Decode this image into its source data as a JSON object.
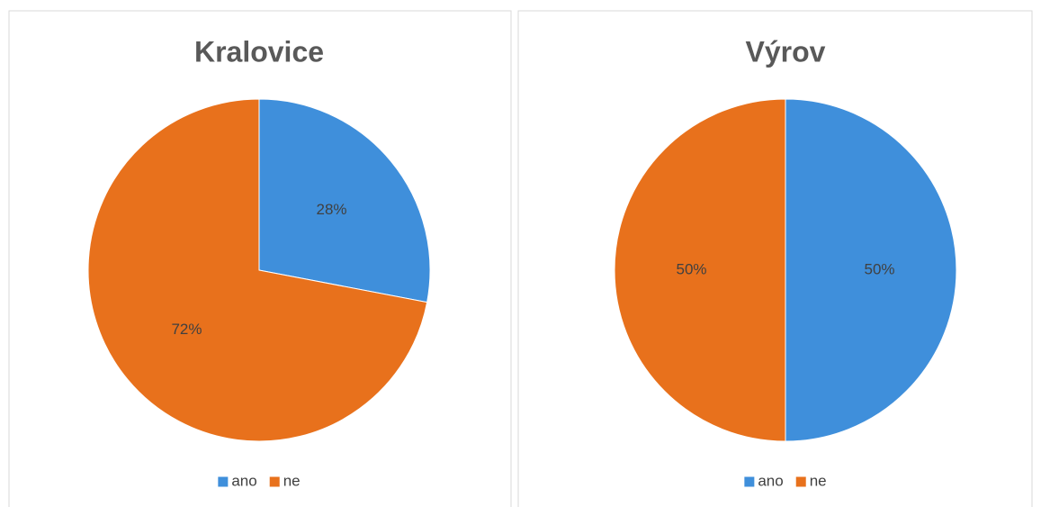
{
  "chart_data": [
    {
      "type": "pie",
      "title": "Kralovice",
      "categories": [
        "ano",
        "ne"
      ],
      "values": [
        28,
        72
      ],
      "value_labels": [
        "28%",
        "72%"
      ],
      "colors": [
        "#3f8fdb",
        "#e8711c"
      ],
      "legend": "bottom"
    },
    {
      "type": "pie",
      "title": "Výrov",
      "categories": [
        "ano",
        "ne"
      ],
      "values": [
        50,
        50
      ],
      "value_labels": [
        "50%",
        "50%"
      ],
      "colors": [
        "#3f8fdb",
        "#e8711c"
      ],
      "legend": "bottom"
    }
  ]
}
